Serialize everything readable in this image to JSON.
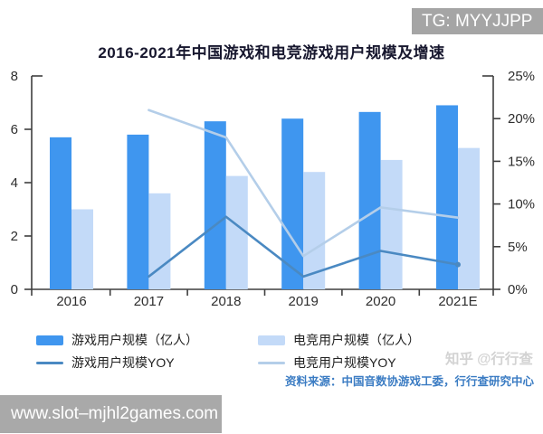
{
  "watermarks": {
    "tg_badge": "TG: MYYJJPP",
    "zhihu": "知乎 @行行查",
    "url": "www.slot–mjhl2games.com"
  },
  "source_note": "资料来源：中国音数协游戏工委，行行查研究中心",
  "chart_data": {
    "type": "bar+line combo",
    "title": "2016-2021年中国游戏和电竞游戏用户规模及增速",
    "categories": [
      "2016",
      "2017",
      "2018",
      "2019",
      "2020",
      "2021E"
    ],
    "series": [
      {
        "key": "game-users",
        "name": "游戏用户规模（亿人）",
        "type": "bar",
        "axis": "left",
        "color": "#3f96ef",
        "values": [
          5.7,
          5.8,
          6.3,
          6.4,
          6.65,
          6.9
        ]
      },
      {
        "key": "esports-users",
        "name": "电竞用户规模（亿人）",
        "type": "bar",
        "axis": "left",
        "color": "#c3daf8",
        "values": [
          3.0,
          3.6,
          4.25,
          4.4,
          4.85,
          5.3
        ]
      },
      {
        "key": "game-yoy",
        "name": "游戏用户规模YOY",
        "type": "line",
        "axis": "right",
        "color": "#4a89c2",
        "values_pct": [
          null,
          1.5,
          8.5,
          1.5,
          4.5,
          2.9
        ],
        "marker_end": true
      },
      {
        "key": "esports-yoy",
        "name": "电竞用户规模YOY",
        "type": "line",
        "axis": "right",
        "color": "#b4cee9",
        "values_pct": [
          null,
          21.0,
          17.8,
          3.9,
          9.6,
          8.4
        ],
        "marker_end": false
      }
    ],
    "left_axis": {
      "range": [
        0,
        8
      ],
      "ticks": [
        0,
        2,
        4,
        6,
        8
      ]
    },
    "right_axis": {
      "range_pct": [
        0,
        25
      ],
      "ticks": [
        "0%",
        "5%",
        "10%",
        "15%",
        "20%",
        "25%"
      ]
    },
    "grid": false,
    "legend_position": "bottom"
  }
}
